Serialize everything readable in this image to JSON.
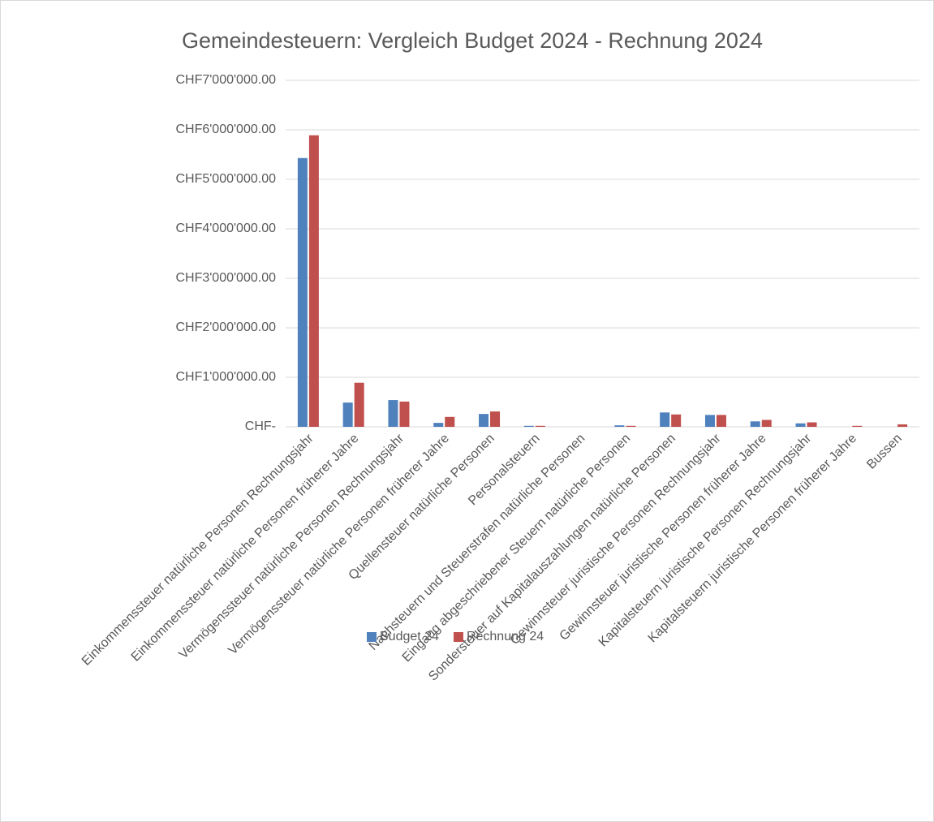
{
  "chart_data": {
    "type": "bar",
    "title": "Gemeindesteuern: Vergleich Budget 2024 - Rechnung 2024",
    "categories": [
      "Einkommenssteuer natürliche Personen Rechnungsjahr",
      "Einkommenssteuer natürliche Personen früherer Jahre",
      "Vermögenssteuer natürliche Personen Rechnungsjahr",
      "Vermögenssteuer natürliche Personen früherer Jahre",
      "Quellensteuer natürliche Personen",
      "Personalsteuern",
      "Nachsteuern und Steuerstrafen natürliche Personen",
      "Eingang abgeschriebener Steuern natürliche Personen",
      "Sondersteuer auf Kapitalauszahlungen natürliche Personen",
      "Gewinnsteuer juristische Personen Rechnungsjahr",
      "Gewinnsteuer juristische Personen früherer Jahre",
      "Kapitalsteuern juristische Personen Rechnungsjahr",
      "Kapitalsteuern juristische Personen früherer Jahre",
      "Bussen"
    ],
    "series": [
      {
        "name": "Budget 24",
        "color": "#4f81bd",
        "values": [
          5430000,
          490000,
          540000,
          80000,
          260000,
          20000,
          0,
          30000,
          290000,
          240000,
          110000,
          70000,
          0,
          0
        ]
      },
      {
        "name": "Rechnung 24",
        "color": "#c0504d",
        "values": [
          5890000,
          890000,
          510000,
          200000,
          310000,
          20000,
          0,
          20000,
          250000,
          240000,
          140000,
          90000,
          20000,
          50000
        ]
      }
    ],
    "ylim": [
      0,
      7000000
    ],
    "yticks": [
      {
        "value": 0,
        "label": "CHF-"
      },
      {
        "value": 1000000,
        "label": "CHF1'000'000.00"
      },
      {
        "value": 2000000,
        "label": "CHF2'000'000.00"
      },
      {
        "value": 3000000,
        "label": "CHF3'000'000.00"
      },
      {
        "value": 4000000,
        "label": "CHF4'000'000.00"
      },
      {
        "value": 5000000,
        "label": "CHF5'000'000.00"
      },
      {
        "value": 6000000,
        "label": "CHF6'000'000.00"
      },
      {
        "value": 7000000,
        "label": "CHF7'000'000.00"
      }
    ],
    "grid": true,
    "legend": "bottom"
  }
}
